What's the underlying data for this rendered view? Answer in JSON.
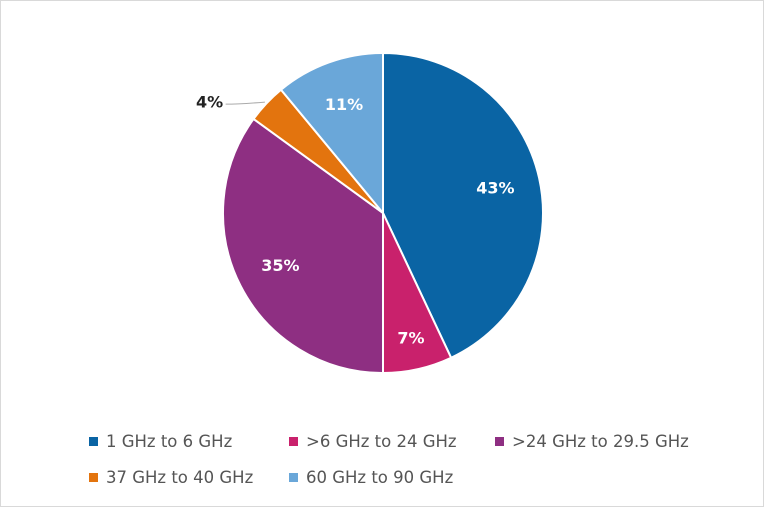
{
  "chart_data": {
    "type": "pie",
    "title": "",
    "slices": [
      {
        "label": "1 GHz to 6 GHz",
        "value": 43,
        "display": "43%",
        "color": "#0a64a4"
      },
      {
        "label": ">6 GHz to 24 GHz",
        "value": 7,
        "display": "7%",
        "color": "#c9216c"
      },
      {
        "label": ">24 GHz to 29.5 GHz",
        "value": 35,
        "display": "35%",
        "color": "#8e2f82"
      },
      {
        "label": "37 GHz to 40 GHz",
        "value": 4,
        "display": "4%",
        "color": "#e3740e"
      },
      {
        "label": "60 GHz to 90 GHz",
        "value": 11,
        "display": "11%",
        "color": "#6aa7d9"
      }
    ],
    "legend_position": "bottom"
  }
}
